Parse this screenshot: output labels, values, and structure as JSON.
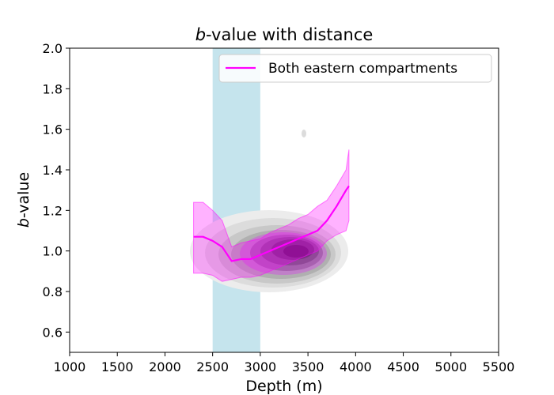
{
  "chart_data": {
    "type": "line",
    "title_italic": "b",
    "title_rest": "-value with distance",
    "xlabel": "Depth (m)",
    "ylabel_italic": "b",
    "ylabel_rest": "-value",
    "xlim": [
      1000,
      5500
    ],
    "ylim": [
      0.5,
      2.0
    ],
    "xticks": [
      "1000",
      "1500",
      "2000",
      "2500",
      "3000",
      "3500",
      "4000",
      "4500",
      "5000",
      "5500"
    ],
    "yticks": [
      "0.6",
      "0.8",
      "1.0",
      "1.2",
      "1.4",
      "1.6",
      "1.8",
      "2.0"
    ],
    "highlight_band": {
      "x_start": 2500,
      "x_end": 3000,
      "color": "#add8e6"
    },
    "series": [
      {
        "name": "Both eastern compartments",
        "color": "#ff00ff",
        "x": [
          2300,
          2400,
          2500,
          2600,
          2700,
          2800,
          2900,
          3000,
          3100,
          3200,
          3300,
          3400,
          3500,
          3600,
          3700,
          3800,
          3900,
          3930
        ],
        "y": [
          1.07,
          1.07,
          1.05,
          1.02,
          0.95,
          0.96,
          0.96,
          0.98,
          1.0,
          1.02,
          1.04,
          1.06,
          1.08,
          1.1,
          1.15,
          1.22,
          1.3,
          1.32
        ],
        "upper": [
          1.24,
          1.24,
          1.2,
          1.15,
          1.02,
          1.04,
          1.05,
          1.06,
          1.09,
          1.11,
          1.13,
          1.16,
          1.18,
          1.22,
          1.25,
          1.32,
          1.4,
          1.5
        ],
        "lower": [
          0.89,
          0.89,
          0.88,
          0.85,
          0.86,
          0.87,
          0.87,
          0.88,
          0.9,
          0.92,
          0.94,
          0.96,
          0.98,
          1.0,
          1.05,
          1.08,
          1.1,
          1.15
        ]
      }
    ],
    "density_note": "kernel density contours of b-value vs depth (grey and purple)"
  }
}
